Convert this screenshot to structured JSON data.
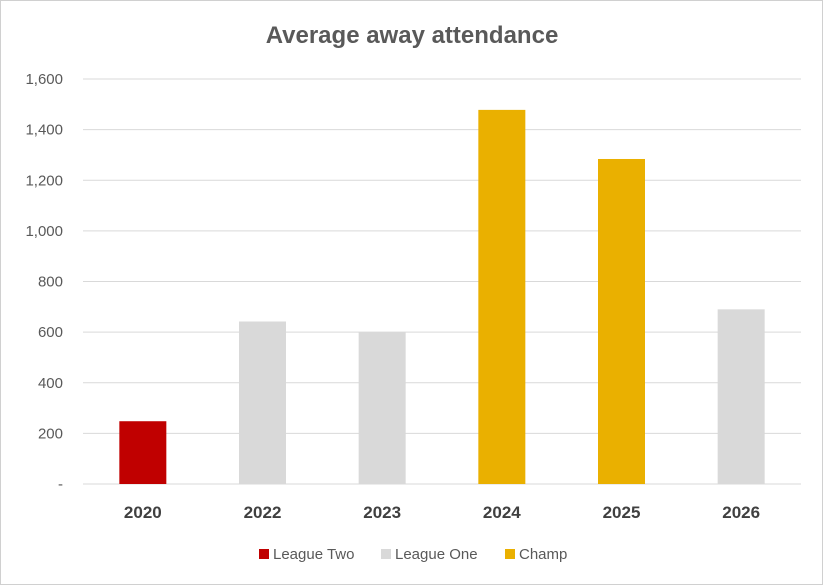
{
  "chart_data": {
    "type": "bar",
    "title": "Average away attendance",
    "xlabel": "",
    "ylabel": "",
    "categories": [
      "2020",
      "2022",
      "2023",
      "2024",
      "2025",
      "2026"
    ],
    "values": [
      248,
      642,
      600,
      1478,
      1284,
      690
    ],
    "bar_league": [
      "League Two",
      "League One",
      "League One",
      "Champ",
      "Champ",
      "League One"
    ],
    "ylim": [
      0,
      1600
    ],
    "yticks": [
      {
        "value": 0,
        "label": "-"
      },
      {
        "value": 200,
        "label": "200"
      },
      {
        "value": 400,
        "label": "400"
      },
      {
        "value": 600,
        "label": "600"
      },
      {
        "value": 800,
        "label": "800"
      },
      {
        "value": 1000,
        "label": "1,000"
      },
      {
        "value": 1200,
        "label": "1,200"
      },
      {
        "value": 1400,
        "label": "1,400"
      },
      {
        "value": 1600,
        "label": "1,600"
      }
    ],
    "grid": true,
    "legend_position": "bottom",
    "legend": [
      {
        "name": "League Two",
        "color": "#c00000"
      },
      {
        "name": "League One",
        "color": "#d9d9d9"
      },
      {
        "name": "Champ",
        "color": "#eab000"
      }
    ]
  }
}
